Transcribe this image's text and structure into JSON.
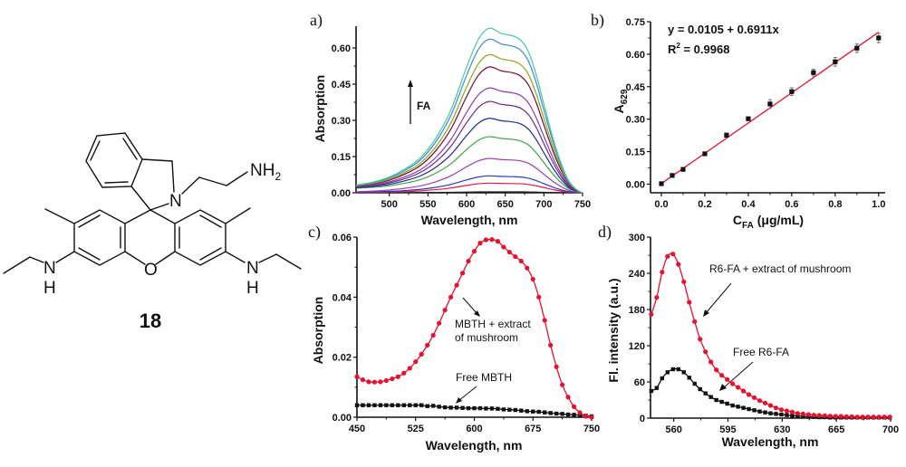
{
  "compound": {
    "label": "18",
    "atoms": {
      "N_ring": "N",
      "NH2_N": "NH",
      "NH2_sub": "2",
      "O": "O",
      "N_left": "N",
      "H_left": "H",
      "N_right": "N",
      "H_right": "H"
    }
  },
  "colors": {
    "red": "#e8102e",
    "black": "#111111"
  },
  "chart_data": [
    {
      "id": "a",
      "panel_label": "a)",
      "type": "line",
      "xlabel": "Wavelength, nm",
      "ylabel": "Absorption",
      "xlim": [
        457,
        750
      ],
      "ylim": [
        0,
        0.69
      ],
      "xticks": [
        500,
        550,
        600,
        650,
        700,
        750
      ],
      "yticks": [
        0.0,
        0.15,
        0.3,
        0.45,
        0.6
      ],
      "ytick_labels": [
        "0.00",
        "0.15",
        "0.30",
        "0.45",
        "0.60"
      ],
      "annotation": "FA",
      "profile_x": [
        457,
        480,
        500,
        520,
        540,
        560,
        580,
        600,
        615,
        629,
        645,
        660,
        670,
        680,
        690,
        700,
        715,
        730,
        742,
        750
      ],
      "profile_norm": [
        0.03,
        0.05,
        0.08,
        0.13,
        0.2,
        0.32,
        0.5,
        0.76,
        0.93,
        1.0,
        0.97,
        0.955,
        0.93,
        0.86,
        0.72,
        0.54,
        0.28,
        0.09,
        0.02,
        0.0
      ],
      "series": [
        {
          "peak": 0.004,
          "color": "#222222"
        },
        {
          "peak": 0.04,
          "color": "#e8174a"
        },
        {
          "peak": 0.07,
          "color": "#2a3fb8"
        },
        {
          "peak": 0.142,
          "color": "#a03cb0"
        },
        {
          "peak": 0.226,
          "color": "#3aa83a"
        },
        {
          "peak": 0.302,
          "color": "#1b2a9a"
        },
        {
          "peak": 0.372,
          "color": "#6a2a9a"
        },
        {
          "peak": 0.428,
          "color": "#8a3ab0"
        },
        {
          "peak": 0.515,
          "color": "#7a0a2a"
        },
        {
          "peak": 0.566,
          "color": "#8aa81a"
        },
        {
          "peak": 0.63,
          "color": "#3a8ad8"
        },
        {
          "peak": 0.675,
          "color": "#4ac89a"
        }
      ]
    },
    {
      "id": "b",
      "panel_label": "b)",
      "type": "scatter",
      "xlabel_main": "C",
      "xlabel_sub": "FA",
      "xlabel_rest": " (μg/mL)",
      "ylabel_main": "A",
      "ylabel_sub": "629",
      "xlim": [
        -0.05,
        1.03
      ],
      "ylim": [
        -0.04,
        0.75
      ],
      "xticks": [
        0.0,
        0.2,
        0.4,
        0.6,
        0.8,
        1.0
      ],
      "xtick_labels": [
        "0.0",
        "0.2",
        "0.4",
        "0.6",
        "0.8",
        "1.0"
      ],
      "yticks": [
        0.0,
        0.15,
        0.3,
        0.45,
        0.6,
        0.75
      ],
      "ytick_labels": [
        "0.00",
        "0.15",
        "0.30",
        "0.45",
        "0.60",
        "0.75"
      ],
      "equation": "y = 0.0105 + 0.6911x",
      "r2_main": "R",
      "r2_sup": "2",
      "r2_rest": " = 0.9968",
      "fit": {
        "intercept": 0.0105,
        "slope": 0.6911
      },
      "x": [
        0,
        0.05,
        0.1,
        0.2,
        0.3,
        0.4,
        0.5,
        0.6,
        0.7,
        0.8,
        0.9,
        1.0
      ],
      "y": [
        0.002,
        0.04,
        0.068,
        0.14,
        0.226,
        0.302,
        0.37,
        0.427,
        0.515,
        0.565,
        0.628,
        0.675
      ],
      "err": [
        0.006,
        0.006,
        0.008,
        0.008,
        0.01,
        0.008,
        0.02,
        0.018,
        0.016,
        0.02,
        0.02,
        0.022
      ]
    },
    {
      "id": "c",
      "panel_label": "c)",
      "type": "line",
      "xlabel": "Wavelength, nm",
      "ylabel": "Absorption",
      "xlim": [
        450,
        750
      ],
      "ylim": [
        0,
        0.06
      ],
      "xticks": [
        450,
        525,
        600,
        675,
        750
      ],
      "yticks": [
        0.0,
        0.02,
        0.04,
        0.06
      ],
      "ytick_labels": [
        "0.00",
        "0.02",
        "0.04",
        "0.06"
      ],
      "x": [
        450,
        457.5,
        465,
        472.5,
        480,
        487.5,
        495,
        502.5,
        510,
        517.5,
        525,
        532.5,
        540,
        547.5,
        555,
        562.5,
        570,
        577.5,
        585,
        592.5,
        600,
        607.5,
        615,
        622.5,
        630,
        637.5,
        645,
        652.5,
        660,
        667.5,
        675,
        682.5,
        690,
        697.5,
        705,
        712.5,
        720,
        727.5,
        735,
        742.5,
        750
      ],
      "series": [
        {
          "name": "MBTH + extract of mushroom",
          "label_lines": [
            "MBTH + extract",
            "of mushroom"
          ],
          "marker": "circle",
          "color": "#e8102e",
          "values": [
            0.0135,
            0.0125,
            0.0118,
            0.0117,
            0.0118,
            0.0122,
            0.0128,
            0.0135,
            0.0147,
            0.0163,
            0.0185,
            0.021,
            0.024,
            0.0273,
            0.0313,
            0.0357,
            0.04,
            0.044,
            0.048,
            0.052,
            0.0553,
            0.058,
            0.0591,
            0.0592,
            0.0586,
            0.0567,
            0.055,
            0.0535,
            0.052,
            0.0497,
            0.046,
            0.04,
            0.0323,
            0.024,
            0.0168,
            0.0108,
            0.0067,
            0.0035,
            0.0015,
            0.0003,
            0.0
          ]
        },
        {
          "name": "Free MBTH",
          "label_lines": [
            "Free MBTH"
          ],
          "marker": "square",
          "color": "#111111",
          "values": [
            0.004,
            0.004,
            0.004,
            0.004,
            0.004,
            0.004,
            0.004,
            0.004,
            0.004,
            0.004,
            0.004,
            0.004,
            0.0037,
            0.0038,
            0.0035,
            0.0033,
            0.0032,
            0.0032,
            0.0031,
            0.003,
            0.003,
            0.003,
            0.0029,
            0.0029,
            0.0028,
            0.0026,
            0.0025,
            0.0024,
            0.0022,
            0.002,
            0.0019,
            0.0018,
            0.0016,
            0.0014,
            0.0012,
            0.0011,
            0.0009,
            0.0008,
            0.0007,
            0.0005,
            0.0003
          ]
        }
      ]
    },
    {
      "id": "d",
      "panel_label": "d)",
      "type": "line",
      "xlabel": "Wavelength, nm",
      "ylabel": "Fl. intensity (a.u.)",
      "xlim": [
        545,
        700
      ],
      "ylim": [
        0,
        300
      ],
      "xticks": [
        560,
        595,
        630,
        665,
        700
      ],
      "yticks": [
        0,
        60,
        120,
        180,
        240,
        300
      ],
      "ytick_labels": [
        "0",
        "60",
        "120",
        "180",
        "240",
        "300"
      ],
      "x": [
        545.5,
        549,
        552.5,
        556,
        559.5,
        563,
        566.5,
        570,
        573.5,
        577,
        580.5,
        584,
        587.5,
        591,
        594.5,
        598,
        601.5,
        605,
        608.5,
        612,
        615.5,
        619,
        622.5,
        626,
        629.5,
        633,
        636.5,
        640,
        643.5,
        647,
        650.5,
        654,
        657.5,
        661,
        664.5,
        668,
        671.5,
        675,
        678.5,
        682,
        685.5,
        689,
        692.5,
        696,
        699.5
      ],
      "series": [
        {
          "name": "R6-FA + extract of mushroom",
          "label_lines": [
            "R6-FA + extract of mushroom"
          ],
          "marker": "circle",
          "color": "#e8102e",
          "values": [
            172,
            200,
            242,
            268,
            272,
            255,
            226,
            192,
            160,
            131,
            110,
            93,
            80,
            71,
            64,
            57,
            51,
            45,
            39,
            34,
            29,
            25,
            21,
            17,
            14,
            12,
            10,
            8,
            7,
            6,
            5,
            4.5,
            4,
            3.5,
            3,
            3,
            2.5,
            2.5,
            2,
            2,
            2,
            2,
            2,
            2,
            2
          ]
        },
        {
          "name": "Free R6-FA",
          "label_lines": [
            "Free R6-FA"
          ],
          "marker": "square",
          "color": "#111111",
          "values": [
            45,
            50,
            66,
            76,
            81,
            81,
            76,
            67,
            57,
            48,
            41,
            35,
            30,
            27,
            24,
            21,
            19,
            17,
            15,
            13,
            11,
            9.5,
            8,
            7,
            6,
            5,
            4,
            3.5,
            3,
            2.5,
            2,
            1.5,
            1.5,
            1,
            1,
            1,
            1,
            1,
            1,
            1,
            1,
            1,
            1,
            1,
            1
          ]
        }
      ]
    }
  ]
}
